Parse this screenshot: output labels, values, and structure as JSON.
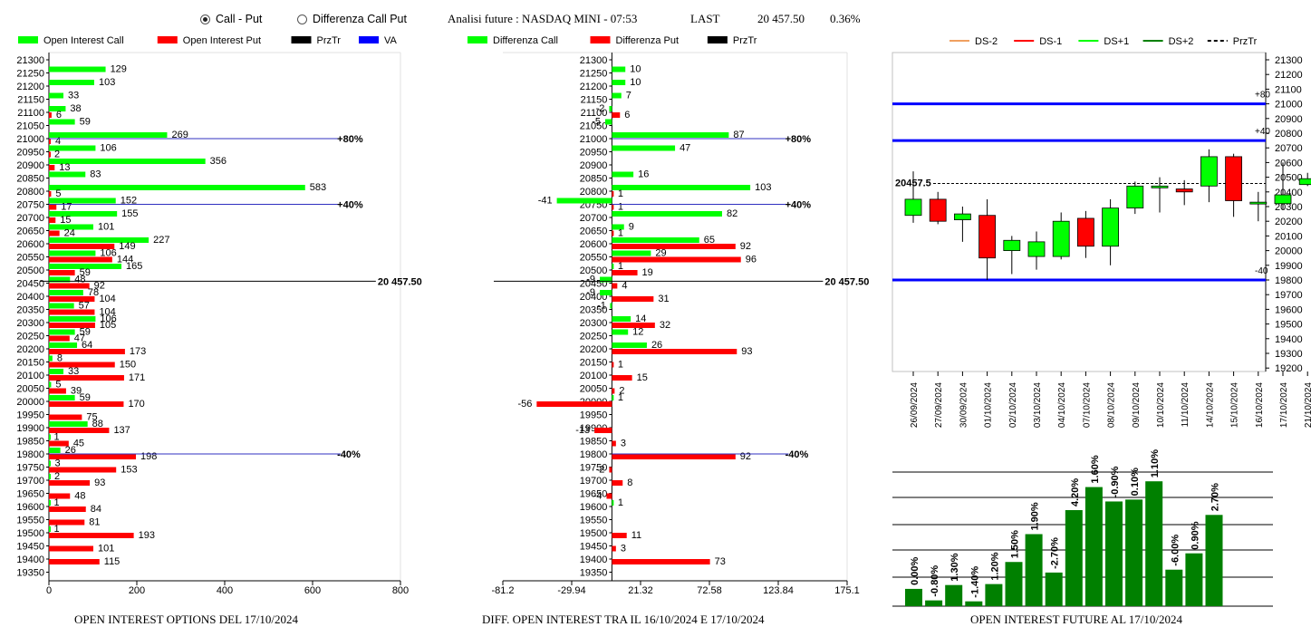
{
  "header": {
    "mode_options": [
      {
        "label": "Call - Put",
        "selected": true
      },
      {
        "label": "Differenza Call Put",
        "selected": false
      }
    ],
    "title": "Analisi future : NASDAQ MINI - 07:53",
    "last_label": "LAST",
    "last_value": "20 457.50",
    "change": "0.36%"
  },
  "colors": {
    "green": "#00ff00",
    "red": "#ff0000",
    "blue": "#0000ff",
    "dark_green": "#008000",
    "black": "#000000"
  },
  "chart_data": [
    {
      "id": "oi",
      "type": "bar",
      "orientation": "horizontal",
      "caption": "OPEN INTEREST OPTIONS DEL 17/10/2024",
      "legend": [
        {
          "name": "Open Interest Call",
          "color": "#00ff00"
        },
        {
          "name": "Open Interest Put",
          "color": "#ff0000"
        },
        {
          "name": "PrzTr",
          "color": "#000000"
        },
        {
          "name": "VA",
          "color": "#0000ff"
        }
      ],
      "strikes": [
        21300,
        21250,
        21200,
        21150,
        21100,
        21050,
        21000,
        20950,
        20900,
        20850,
        20800,
        20750,
        20700,
        20650,
        20600,
        20550,
        20500,
        20450,
        20400,
        20350,
        20300,
        20250,
        20200,
        20150,
        20100,
        20050,
        20000,
        19950,
        19900,
        19850,
        19800,
        19750,
        19700,
        19650,
        19600,
        19550,
        19500,
        19450,
        19400,
        19350
      ],
      "call": [
        null,
        129,
        103,
        33,
        38,
        59,
        269,
        106,
        356,
        83,
        583,
        152,
        155,
        101,
        227,
        106,
        165,
        48,
        78,
        57,
        106,
        59,
        64,
        8,
        33,
        5,
        59,
        null,
        88,
        1,
        26,
        3,
        2,
        null,
        1,
        null,
        1,
        null,
        null,
        null
      ],
      "put": [
        null,
        null,
        null,
        null,
        6,
        null,
        4,
        2,
        13,
        null,
        5,
        17,
        15,
        24,
        149,
        144,
        59,
        92,
        104,
        104,
        105,
        47,
        173,
        150,
        171,
        39,
        170,
        75,
        137,
        45,
        198,
        153,
        93,
        48,
        84,
        81,
        193,
        101,
        115,
        null
      ],
      "xlim": [
        0,
        800
      ],
      "xticks": [
        "0",
        "200",
        "400",
        "600",
        "800"
      ],
      "price_line": {
        "price": 20457.5,
        "label": "20 457.50"
      },
      "va_lines": [
        {
          "strike": 21000,
          "label": "+80%"
        },
        {
          "strike": 20750,
          "label": "+40%"
        },
        {
          "strike": 19800,
          "label": "-40%"
        }
      ]
    },
    {
      "id": "diff",
      "type": "bar",
      "orientation": "horizontal",
      "caption": "DIFF. OPEN INTEREST TRA IL 16/10/2024 E 17/10/2024",
      "legend": [
        {
          "name": "Differenza Call",
          "color": "#00ff00"
        },
        {
          "name": "Differenza Put",
          "color": "#ff0000"
        },
        {
          "name": "PrzTr",
          "color": "#000000"
        }
      ],
      "strikes": [
        21300,
        21250,
        21200,
        21150,
        21100,
        21050,
        21000,
        20950,
        20900,
        20850,
        20800,
        20750,
        20700,
        20650,
        20600,
        20550,
        20500,
        20450,
        20400,
        20350,
        20300,
        20250,
        20200,
        20150,
        20100,
        20050,
        20000,
        19950,
        19900,
        19850,
        19800,
        19750,
        19700,
        19650,
        19600,
        19550,
        19500,
        19450,
        19400,
        19350
      ],
      "call": [
        null,
        10,
        10,
        7,
        -2,
        -5,
        87,
        47,
        null,
        16,
        103,
        -41,
        82,
        9,
        65,
        29,
        1,
        -9,
        -9,
        -1,
        14,
        12,
        26,
        null,
        null,
        null,
        1,
        null,
        null,
        null,
        null,
        null,
        null,
        null,
        1,
        null,
        null,
        null,
        null,
        null
      ],
      "put": [
        null,
        null,
        null,
        null,
        6,
        null,
        null,
        null,
        null,
        null,
        1,
        1,
        null,
        1,
        92,
        96,
        19,
        4,
        31,
        null,
        32,
        null,
        93,
        1,
        15,
        2,
        -56,
        null,
        -13,
        3,
        92,
        -2,
        8,
        -4,
        null,
        null,
        11,
        3,
        73,
        null
      ],
      "xlim": [
        -81.2,
        175.1
      ],
      "xticks": [
        "-81.2",
        "-29.94",
        "21.32",
        "72.58",
        "123.84",
        "175.1"
      ],
      "price_line": {
        "price": 20457.5,
        "label": "20 457.50"
      },
      "va_lines": [
        {
          "strike": 21000,
          "label": "+80%"
        },
        {
          "strike": 20750,
          "label": "+40%"
        },
        {
          "strike": 19800,
          "label": "-40%"
        }
      ]
    },
    {
      "id": "candles",
      "type": "candlestick",
      "legend": [
        {
          "name": "DS-2",
          "color": "#f0a060",
          "style": "solid"
        },
        {
          "name": "DS-1",
          "color": "#ff0000",
          "style": "solid"
        },
        {
          "name": "DS+1",
          "color": "#00ff00",
          "style": "solid"
        },
        {
          "name": "DS+2",
          "color": "#008000",
          "style": "solid"
        },
        {
          "name": "PrzTr",
          "color": "#000000",
          "style": "dashed"
        }
      ],
      "dates": [
        "26/09/2024",
        "27/09/2024",
        "30/09/2024",
        "01/10/2024",
        "02/10/2024",
        "03/10/2024",
        "04/10/2024",
        "07/10/2024",
        "08/10/2024",
        "09/10/2024",
        "10/10/2024",
        "11/10/2024",
        "14/10/2024",
        "15/10/2024",
        "16/10/2024",
        "17/10/2024",
        "21/10/2024"
      ],
      "open": [
        20240,
        20350,
        20210,
        20240,
        20000,
        19960,
        19960,
        20220,
        20030,
        20290,
        20430,
        20420,
        20440,
        20640,
        20320,
        20320,
        20450
      ],
      "close": [
        20350,
        20200,
        20250,
        19950,
        20070,
        20060,
        20200,
        20030,
        20290,
        20440,
        20440,
        20400,
        20640,
        20340,
        20330,
        20380,
        20490
      ],
      "high": [
        20540,
        20400,
        20300,
        20350,
        20100,
        20130,
        20260,
        20270,
        20350,
        20470,
        20500,
        20480,
        20690,
        20660,
        20400,
        20600,
        20530
      ],
      "low": [
        20190,
        20180,
        20060,
        19800,
        19840,
        19870,
        19940,
        19950,
        19900,
        20250,
        20260,
        20310,
        20330,
        20230,
        20200,
        20280,
        20440
      ],
      "ylim": [
        19200,
        21300
      ],
      "yticks": [
        "21300",
        "21200",
        "21100",
        "21000",
        "20900",
        "20800",
        "20700",
        "20600",
        "20500",
        "20400",
        "20300",
        "20200",
        "20100",
        "20000",
        "19900",
        "19800",
        "19700",
        "19600",
        "19500",
        "19400",
        "19300",
        "19200"
      ],
      "price_line": {
        "price": 20457.5,
        "label": "20457.5"
      },
      "levels": [
        {
          "price": 21000,
          "label": "+80"
        },
        {
          "price": 20750,
          "label": "+40"
        },
        {
          "price": 19800,
          "label": "-40"
        }
      ]
    },
    {
      "id": "oi_future",
      "type": "bar",
      "caption": "OPEN INTEREST FUTURE AL 17/10/2024",
      "labels": [
        "0.00%",
        "-0.80%",
        "1.30%",
        "-1.40%",
        "1.20%",
        "1.50%",
        "1.90%",
        "-2.70%",
        "4.20%",
        "1.60%",
        "-0.90%",
        "0.10%",
        "1.10%",
        "-6.00%",
        "0.90%",
        "2.70%"
      ],
      "heights": [
        0.18,
        0.06,
        0.22,
        0.05,
        0.23,
        0.46,
        0.75,
        0.35,
        1.0,
        1.24,
        1.09,
        1.11,
        1.3,
        0.38,
        0.55,
        0.95
      ]
    }
  ]
}
